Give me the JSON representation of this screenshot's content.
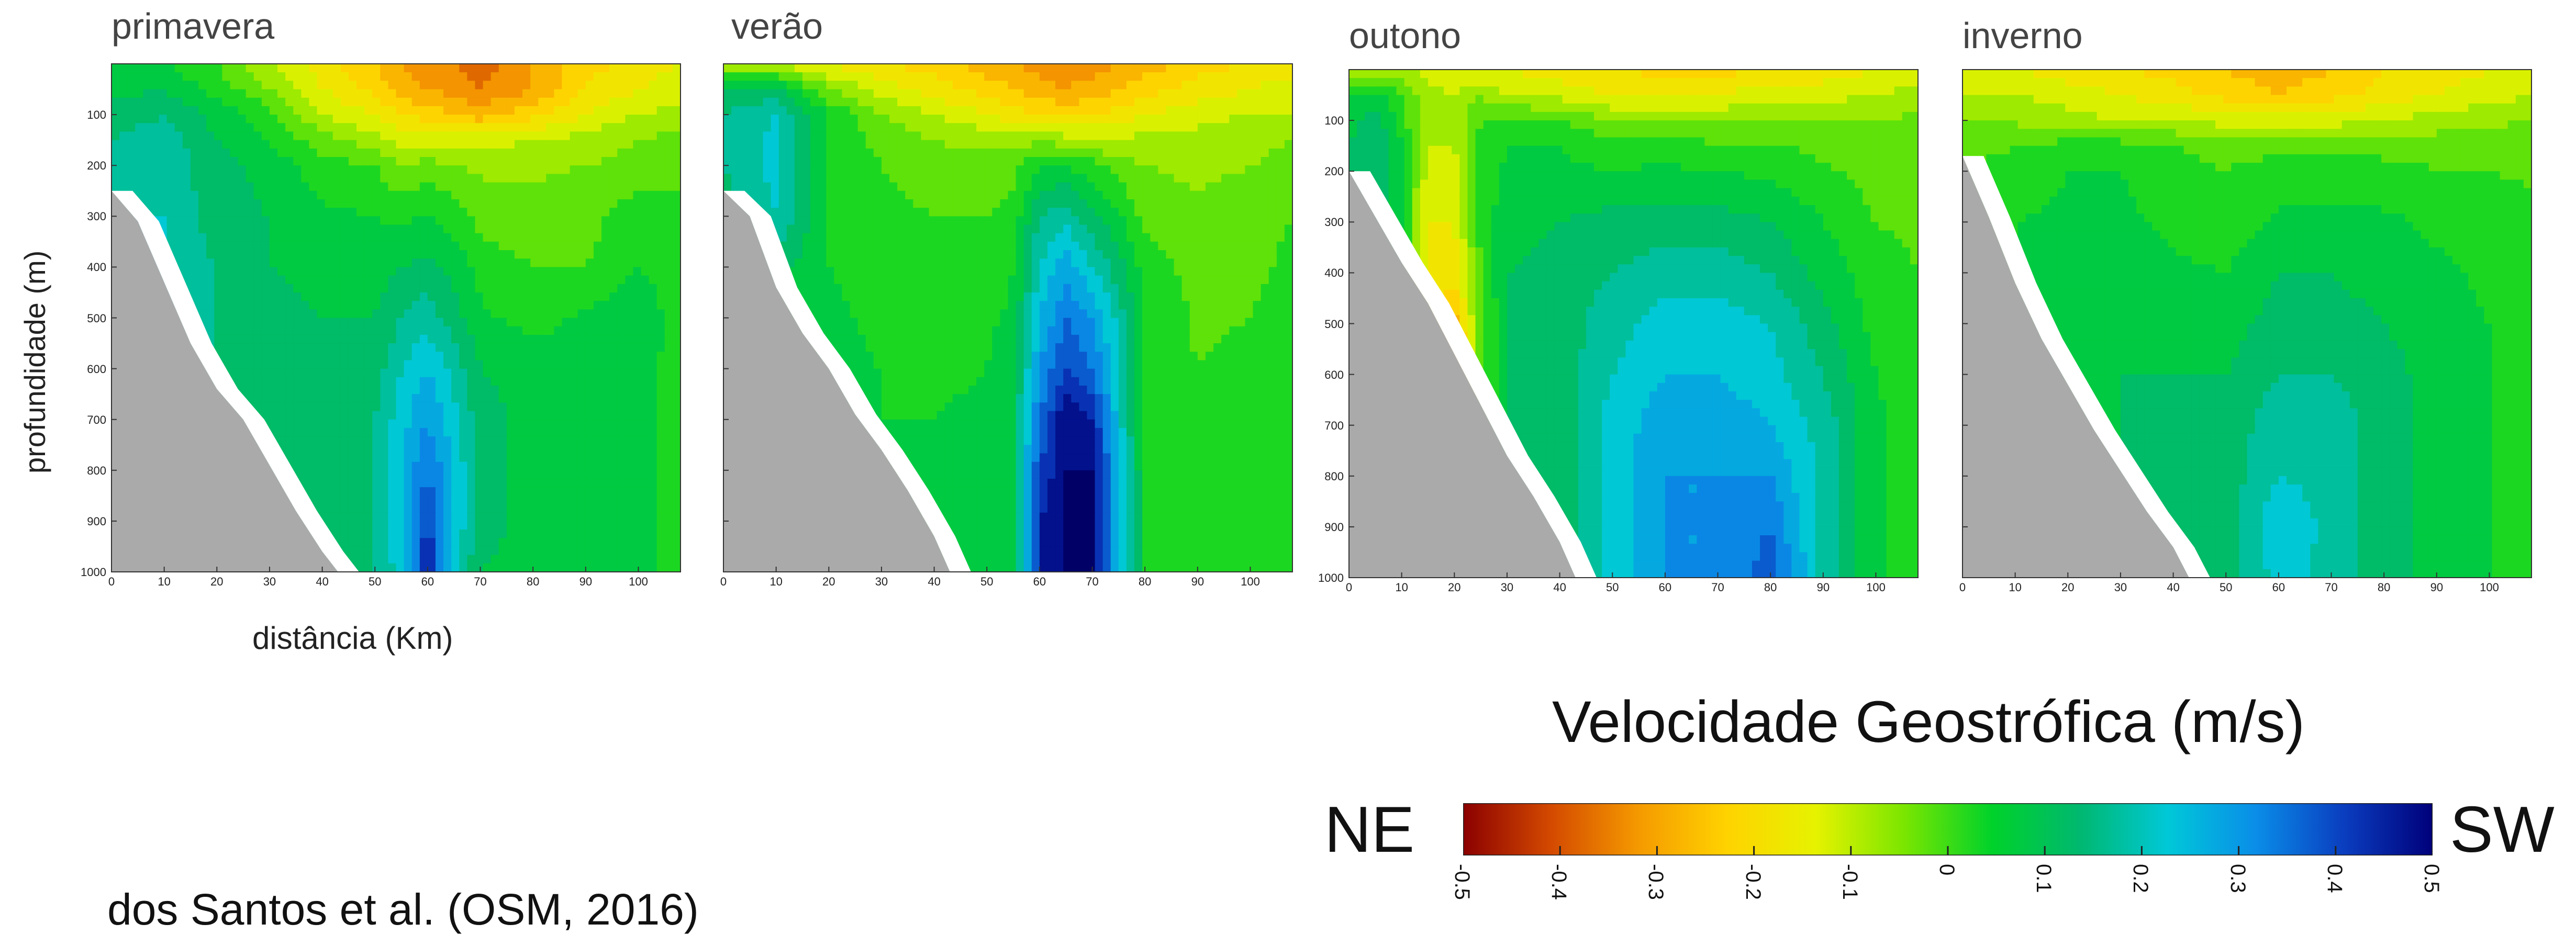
{
  "chart_data": [
    {
      "type": "heatmap",
      "title": "primavera",
      "xlabel": "distância (Km)",
      "ylabel": "profundidade (m)",
      "x_ticks": [
        "0",
        "10",
        "20",
        "30",
        "40",
        "50",
        "60",
        "70",
        "80",
        "90",
        "100"
      ],
      "y_ticks": [
        "100",
        "200",
        "300",
        "400",
        "500",
        "600",
        "700",
        "800",
        "900",
        "1000"
      ],
      "xlim": [
        0,
        108
      ],
      "ylim": [
        1000,
        0
      ],
      "value_range": [
        -0.5,
        0.5
      ],
      "bathymetry": [
        [
          0,
          250
        ],
        [
          5,
          310
        ],
        [
          10,
          430
        ],
        [
          15,
          550
        ],
        [
          20,
          640
        ],
        [
          25,
          700
        ],
        [
          30,
          790
        ],
        [
          35,
          880
        ],
        [
          40,
          960
        ],
        [
          43,
          1000
        ]
      ],
      "grid_x": [
        0,
        10,
        20,
        30,
        40,
        50,
        55,
        60,
        65,
        70,
        80,
        90,
        100,
        108
      ],
      "grid_z": [
        0,
        50,
        100,
        150,
        200,
        300,
        400,
        500,
        600,
        700,
        800,
        900,
        1000
      ],
      "values": [
        [
          0.05,
          0.05,
          0.0,
          -0.1,
          -0.18,
          -0.25,
          -0.3,
          -0.32,
          -0.35,
          -0.38,
          -0.3,
          -0.22,
          -0.18,
          -0.15
        ],
        [
          0.08,
          0.1,
          0.03,
          -0.05,
          -0.15,
          -0.22,
          -0.28,
          -0.3,
          -0.32,
          -0.35,
          -0.3,
          -0.2,
          -0.15,
          -0.12
        ],
        [
          0.12,
          0.15,
          0.08,
          0.02,
          -0.1,
          -0.15,
          -0.2,
          -0.22,
          -0.25,
          -0.28,
          -0.22,
          -0.15,
          -0.1,
          -0.08
        ],
        [
          0.15,
          0.18,
          0.1,
          0.05,
          -0.03,
          -0.08,
          -0.12,
          -0.12,
          -0.12,
          -0.12,
          -0.1,
          -0.08,
          -0.05,
          -0.03
        ],
        [
          0.2,
          0.18,
          0.12,
          0.08,
          0.02,
          0.0,
          -0.05,
          -0.03,
          -0.05,
          -0.06,
          -0.06,
          -0.05,
          -0.03,
          -0.02
        ],
        [
          0.2,
          0.2,
          0.12,
          0.1,
          0.06,
          0.05,
          0.04,
          0.05,
          0.03,
          -0.02,
          -0.03,
          -0.02,
          0.03,
          0.02
        ],
        [
          0.2,
          0.2,
          0.15,
          0.1,
          0.08,
          0.08,
          0.1,
          0.12,
          0.08,
          0.03,
          0.0,
          0.0,
          0.05,
          0.03
        ],
        [
          0.2,
          0.22,
          0.15,
          0.12,
          0.1,
          0.1,
          0.15,
          0.18,
          0.12,
          0.06,
          0.03,
          0.06,
          0.08,
          0.03
        ],
        [
          0.2,
          0.22,
          0.15,
          0.12,
          0.12,
          0.12,
          0.2,
          0.25,
          0.18,
          0.1,
          0.08,
          0.08,
          0.08,
          0.02
        ],
        [
          0.2,
          0.2,
          0.15,
          0.12,
          0.12,
          0.15,
          0.23,
          0.3,
          0.22,
          0.12,
          0.08,
          0.08,
          0.08,
          0.02
        ],
        [
          0.2,
          0.2,
          0.15,
          0.12,
          0.12,
          0.15,
          0.25,
          0.35,
          0.25,
          0.12,
          0.08,
          0.08,
          0.08,
          0.02
        ],
        [
          0.2,
          0.2,
          0.15,
          0.12,
          0.12,
          0.15,
          0.25,
          0.42,
          0.25,
          0.12,
          0.08,
          0.08,
          0.08,
          0.02
        ],
        [
          0.2,
          0.2,
          0.15,
          0.12,
          0.12,
          0.15,
          0.22,
          0.45,
          0.22,
          0.1,
          0.08,
          0.08,
          0.08,
          0.02
        ]
      ]
    },
    {
      "type": "heatmap",
      "title": "verão",
      "x_ticks": [
        "0",
        "10",
        "20",
        "30",
        "40",
        "50",
        "60",
        "70",
        "80",
        "90",
        "100"
      ],
      "xlim": [
        0,
        108
      ],
      "ylim": [
        1000,
        0
      ],
      "value_range": [
        -0.5,
        0.5
      ],
      "bathymetry": [
        [
          0,
          250
        ],
        [
          5,
          300
        ],
        [
          10,
          440
        ],
        [
          15,
          530
        ],
        [
          20,
          600
        ],
        [
          25,
          690
        ],
        [
          30,
          760
        ],
        [
          35,
          840
        ],
        [
          40,
          930
        ],
        [
          43,
          1000
        ]
      ],
      "grid_x": [
        0,
        10,
        20,
        30,
        40,
        50,
        55,
        60,
        65,
        70,
        75,
        80,
        90,
        100,
        108
      ],
      "grid_z": [
        0,
        50,
        100,
        150,
        200,
        300,
        400,
        500,
        600,
        700,
        800,
        900,
        1000
      ],
      "values": [
        [
          -0.1,
          -0.12,
          -0.15,
          -0.2,
          -0.22,
          -0.28,
          -0.3,
          -0.32,
          -0.33,
          -0.32,
          -0.3,
          -0.28,
          -0.22,
          -0.2,
          -0.18
        ],
        [
          0.1,
          0.12,
          -0.05,
          -0.12,
          -0.18,
          -0.22,
          -0.25,
          -0.28,
          -0.3,
          -0.28,
          -0.25,
          -0.22,
          -0.18,
          -0.15,
          -0.12
        ],
        [
          0.15,
          0.2,
          0.05,
          -0.05,
          -0.1,
          -0.15,
          -0.18,
          -0.2,
          -0.22,
          -0.2,
          -0.18,
          -0.15,
          -0.12,
          -0.1,
          -0.1
        ],
        [
          0.15,
          0.22,
          0.05,
          -0.02,
          -0.05,
          -0.06,
          -0.08,
          -0.06,
          -0.08,
          -0.1,
          -0.1,
          -0.08,
          -0.08,
          -0.06,
          -0.05
        ],
        [
          0.15,
          0.22,
          0.05,
          0.0,
          -0.04,
          -0.04,
          -0.02,
          0.05,
          0.05,
          0.02,
          -0.03,
          -0.05,
          -0.06,
          -0.05,
          -0.04
        ],
        [
          0.12,
          0.2,
          0.05,
          0.02,
          0.0,
          0.0,
          0.02,
          0.15,
          0.18,
          0.12,
          0.06,
          -0.02,
          -0.04,
          -0.03,
          0.0
        ],
        [
          0.1,
          0.12,
          0.05,
          0.03,
          0.02,
          0.02,
          0.05,
          0.2,
          0.28,
          0.2,
          0.12,
          0.03,
          -0.02,
          -0.02,
          0.02
        ],
        [
          0.1,
          0.08,
          0.06,
          0.04,
          0.03,
          0.04,
          0.06,
          0.25,
          0.35,
          0.3,
          0.18,
          0.05,
          -0.01,
          0.0,
          0.03
        ],
        [
          0.1,
          0.08,
          0.06,
          0.05,
          0.04,
          0.05,
          0.08,
          0.3,
          0.4,
          0.35,
          0.2,
          0.05,
          0.0,
          0.02,
          0.04
        ],
        [
          0.1,
          0.08,
          0.06,
          0.05,
          0.05,
          0.06,
          0.1,
          0.35,
          0.5,
          0.45,
          0.22,
          0.05,
          0.02,
          0.03,
          0.04
        ],
        [
          0.1,
          0.08,
          0.06,
          0.05,
          0.05,
          0.06,
          0.1,
          0.4,
          0.5,
          0.5,
          0.25,
          0.05,
          0.03,
          0.03,
          0.04
        ],
        [
          0.1,
          0.08,
          0.06,
          0.05,
          0.05,
          0.06,
          0.1,
          0.45,
          0.5,
          0.5,
          0.25,
          0.05,
          0.03,
          0.03,
          0.04
        ],
        [
          0.1,
          0.08,
          0.06,
          0.05,
          0.05,
          0.06,
          0.1,
          0.45,
          0.5,
          0.5,
          0.25,
          0.05,
          0.03,
          0.03,
          0.04
        ]
      ]
    },
    {
      "type": "heatmap",
      "title": "outono",
      "x_ticks": [
        "0",
        "10",
        "20",
        "30",
        "40",
        "50",
        "60",
        "70",
        "80",
        "90",
        "100"
      ],
      "xlim": [
        0,
        108
      ],
      "ylim": [
        1000,
        0
      ],
      "value_range": [
        -0.5,
        0.5
      ],
      "bathymetry": [
        [
          0,
          200
        ],
        [
          5,
          290
        ],
        [
          10,
          380
        ],
        [
          15,
          460
        ],
        [
          20,
          560
        ],
        [
          25,
          660
        ],
        [
          30,
          760
        ],
        [
          35,
          840
        ],
        [
          40,
          930
        ],
        [
          43,
          1000
        ]
      ],
      "grid_x": [
        0,
        5,
        10,
        15,
        20,
        25,
        30,
        40,
        50,
        60,
        70,
        80,
        90,
        100,
        108
      ],
      "grid_z": [
        0,
        50,
        100,
        150,
        200,
        300,
        400,
        500,
        600,
        700,
        800,
        900,
        1000
      ],
      "values": [
        [
          -0.1,
          -0.1,
          -0.1,
          -0.12,
          -0.15,
          -0.15,
          -0.15,
          -0.18,
          -0.2,
          -0.22,
          -0.22,
          -0.2,
          -0.18,
          -0.15,
          -0.12
        ],
        [
          0.05,
          0.08,
          0.0,
          -0.08,
          -0.1,
          -0.05,
          -0.1,
          -0.12,
          -0.15,
          -0.15,
          -0.15,
          -0.12,
          -0.12,
          -0.1,
          -0.08
        ],
        [
          0.08,
          0.12,
          0.02,
          -0.08,
          -0.08,
          0.0,
          0.02,
          0.0,
          -0.05,
          -0.06,
          -0.06,
          -0.05,
          -0.05,
          -0.05,
          -0.04
        ],
        [
          0.1,
          0.15,
          0.05,
          -0.1,
          -0.1,
          0.02,
          0.05,
          0.05,
          0.02,
          0.02,
          0.01,
          0.01,
          -0.02,
          -0.03,
          -0.03
        ],
        [
          0.12,
          0.15,
          0.05,
          -0.12,
          -0.12,
          0.02,
          0.06,
          0.06,
          0.05,
          0.06,
          0.05,
          0.04,
          0.01,
          -0.02,
          -0.02
        ],
        [
          0.12,
          0.15,
          0.05,
          -0.15,
          -0.15,
          0.02,
          0.08,
          0.1,
          0.12,
          0.12,
          0.12,
          0.1,
          0.05,
          0.0,
          -0.01
        ],
        [
          0.12,
          0.15,
          0.05,
          -0.15,
          -0.18,
          0.0,
          0.1,
          0.12,
          0.15,
          0.18,
          0.18,
          0.15,
          0.08,
          0.02,
          0.0
        ],
        [
          0.12,
          0.15,
          0.05,
          -0.2,
          -0.28,
          -0.02,
          0.1,
          0.12,
          0.18,
          0.22,
          0.22,
          0.2,
          0.12,
          0.03,
          0.01
        ],
        [
          0.12,
          0.15,
          0.05,
          -0.25,
          -0.35,
          -0.02,
          0.1,
          0.12,
          0.2,
          0.25,
          0.25,
          0.22,
          0.15,
          0.05,
          0.02
        ],
        [
          0.12,
          0.15,
          0.05,
          -0.15,
          -0.15,
          0.0,
          0.1,
          0.12,
          0.22,
          0.28,
          0.28,
          0.25,
          0.18,
          0.06,
          0.03
        ],
        [
          0.12,
          0.15,
          0.05,
          0.0,
          0.02,
          0.05,
          0.1,
          0.12,
          0.22,
          0.3,
          0.3,
          0.3,
          0.18,
          0.06,
          0.03
        ],
        [
          0.12,
          0.15,
          0.05,
          0.05,
          0.05,
          0.08,
          0.1,
          0.12,
          0.22,
          0.3,
          0.3,
          0.35,
          0.18,
          0.06,
          0.03
        ],
        [
          0.12,
          0.15,
          0.05,
          0.05,
          0.05,
          0.08,
          0.1,
          0.12,
          0.22,
          0.3,
          0.3,
          0.38,
          0.18,
          0.06,
          0.03
        ]
      ]
    },
    {
      "type": "heatmap",
      "title": "inverno",
      "x_ticks": [
        "0",
        "10",
        "20",
        "30",
        "40",
        "50",
        "60",
        "70",
        "80",
        "90",
        "100"
      ],
      "xlim": [
        0,
        108
      ],
      "ylim": [
        1000,
        0
      ],
      "value_range": [
        -0.5,
        0.5
      ],
      "bathymetry": [
        [
          0,
          170
        ],
        [
          5,
          290
        ],
        [
          10,
          420
        ],
        [
          15,
          530
        ],
        [
          20,
          620
        ],
        [
          25,
          710
        ],
        [
          30,
          790
        ],
        [
          35,
          870
        ],
        [
          40,
          940
        ],
        [
          43,
          1000
        ]
      ],
      "grid_x": [
        0,
        10,
        20,
        30,
        40,
        50,
        60,
        70,
        80,
        90,
        100,
        108
      ],
      "grid_z": [
        0,
        50,
        100,
        150,
        200,
        300,
        400,
        500,
        600,
        700,
        800,
        900,
        1000
      ],
      "values": [
        [
          -0.15,
          -0.15,
          -0.18,
          -0.2,
          -0.22,
          -0.25,
          -0.28,
          -0.25,
          -0.2,
          -0.18,
          -0.15,
          -0.12
        ],
        [
          -0.1,
          -0.1,
          -0.12,
          -0.15,
          -0.18,
          -0.22,
          -0.25,
          -0.22,
          -0.18,
          -0.15,
          -0.12,
          -0.1
        ],
        [
          -0.05,
          -0.06,
          -0.08,
          -0.1,
          -0.1,
          -0.12,
          -0.12,
          -0.12,
          -0.1,
          -0.08,
          -0.06,
          -0.05
        ],
        [
          -0.02,
          0.0,
          0.02,
          0.02,
          0.0,
          -0.02,
          -0.02,
          -0.02,
          -0.02,
          -0.02,
          -0.02,
          -0.02
        ],
        [
          0.0,
          0.02,
          0.05,
          0.05,
          0.02,
          0.0,
          0.03,
          0.03,
          0.02,
          0.0,
          0.0,
          -0.01
        ],
        [
          0.02,
          0.05,
          0.06,
          0.06,
          0.04,
          0.02,
          0.06,
          0.06,
          0.06,
          0.04,
          0.03,
          0.02
        ],
        [
          0.02,
          0.05,
          0.08,
          0.08,
          0.06,
          0.05,
          0.1,
          0.1,
          0.08,
          0.06,
          0.04,
          0.03
        ],
        [
          0.02,
          0.05,
          0.08,
          0.1,
          0.08,
          0.08,
          0.12,
          0.12,
          0.1,
          0.07,
          0.05,
          0.04
        ],
        [
          0.02,
          0.05,
          0.08,
          0.1,
          0.1,
          0.1,
          0.15,
          0.15,
          0.12,
          0.08,
          0.05,
          0.04
        ],
        [
          0.02,
          0.05,
          0.08,
          0.1,
          0.1,
          0.12,
          0.18,
          0.18,
          0.12,
          0.08,
          0.05,
          0.04
        ],
        [
          0.02,
          0.05,
          0.08,
          0.1,
          0.1,
          0.12,
          0.2,
          0.18,
          0.12,
          0.08,
          0.05,
          0.04
        ],
        [
          0.02,
          0.05,
          0.08,
          0.1,
          0.1,
          0.12,
          0.25,
          0.18,
          0.12,
          0.08,
          0.05,
          0.04
        ],
        [
          0.02,
          0.05,
          0.08,
          0.1,
          0.1,
          0.12,
          0.22,
          0.18,
          0.12,
          0.08,
          0.05,
          0.04
        ]
      ]
    }
  ],
  "colorbar": {
    "title": "Velocidade Geostrófica (m/s)",
    "left_label": "NE",
    "right_label": "SW",
    "ticks": [
      "-0.5",
      "-0.4",
      "-0.3",
      "-0.2",
      "-0.1",
      "0",
      "0.1",
      "0.2",
      "0.3",
      "0.4",
      "0.5"
    ],
    "colors": [
      "#8b0000",
      "#d44a00",
      "#f59a00",
      "#ffd300",
      "#e6f200",
      "#7be600",
      "#00d22a",
      "#00b870",
      "#00c8d8",
      "#0a8de8",
      "#0a3dbf",
      "#00007a"
    ]
  },
  "citation": "dos Santos et al. (OSM, 2016)",
  "colors": {
    "land": "#aaaaaa",
    "contour_zero": "#ffffff"
  }
}
